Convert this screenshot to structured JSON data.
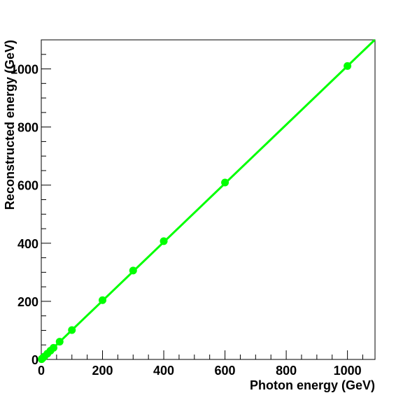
{
  "chart_data": {
    "type": "scatter",
    "xlabel": "Photon energy (GeV)",
    "ylabel": "Reconstructed energy (GeV)",
    "xlim": [
      0,
      1090
    ],
    "ylim": [
      0,
      1100
    ],
    "x_ticks": [
      0,
      200,
      400,
      600,
      800,
      1000
    ],
    "y_ticks": [
      0,
      200,
      400,
      600,
      800,
      1000
    ],
    "grid": false,
    "colors": {
      "series": "#00ff00",
      "axes": "#000000"
    },
    "series": [
      {
        "points": [
          {
            "x": 1,
            "y": 1
          },
          {
            "x": 2,
            "y": 2
          },
          {
            "x": 5,
            "y": 5
          },
          {
            "x": 10,
            "y": 10
          },
          {
            "x": 20,
            "y": 20
          },
          {
            "x": 30,
            "y": 30
          },
          {
            "x": 40,
            "y": 40
          },
          {
            "x": 60,
            "y": 61
          },
          {
            "x": 100,
            "y": 101
          },
          {
            "x": 200,
            "y": 204
          },
          {
            "x": 300,
            "y": 306
          },
          {
            "x": 400,
            "y": 407
          },
          {
            "x": 600,
            "y": 609
          },
          {
            "x": 1000,
            "y": 1010
          }
        ]
      }
    ],
    "fit": {
      "slope": 1.01,
      "intercept": 0,
      "x_range": [
        0,
        1090
      ]
    }
  }
}
